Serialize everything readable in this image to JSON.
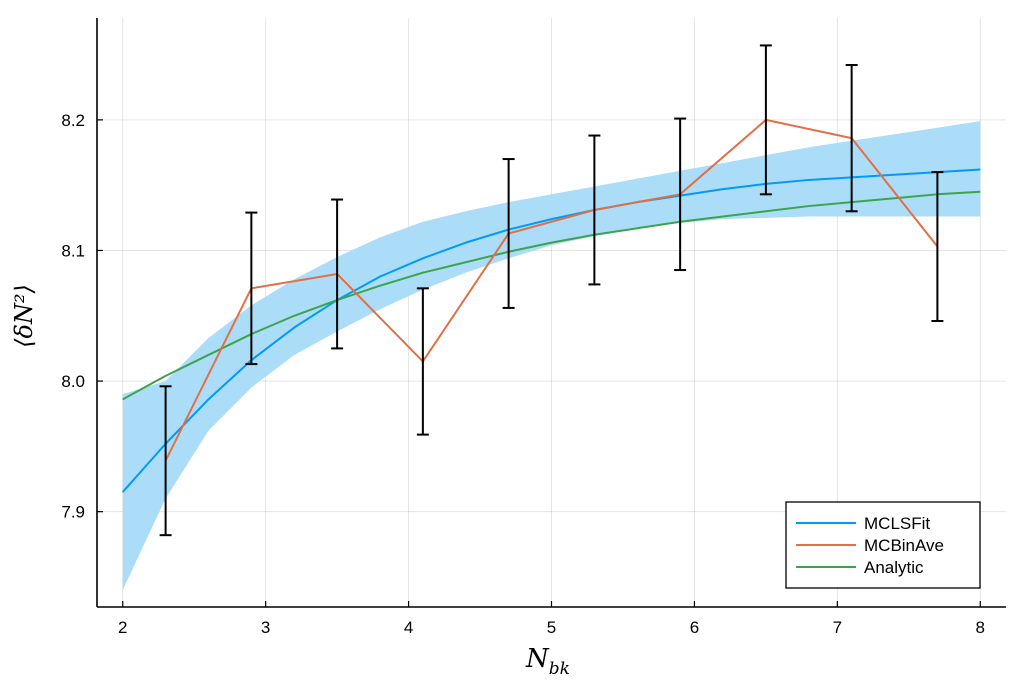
{
  "chart_data": {
    "type": "line",
    "xlabel": "N",
    "xlabel_sub": "bk",
    "ylabel": "⟨δN²⟩",
    "xlim": [
      1.82,
      8.18
    ],
    "ylim": [
      7.827,
      8.278
    ],
    "xticks": [
      2,
      3,
      4,
      5,
      6,
      7,
      8
    ],
    "xtick_labels": [
      "2",
      "3",
      "4",
      "5",
      "6",
      "7",
      "8"
    ],
    "yticks": [
      7.9,
      8.0,
      8.1,
      8.2
    ],
    "ytick_labels": [
      "7.9",
      "8.0",
      "8.1",
      "8.2"
    ],
    "grid": true,
    "legend_position": "bottom-right",
    "band": {
      "color": "#a6dbf8",
      "x": [
        2.0,
        2.3,
        2.6,
        2.9,
        3.2,
        3.5,
        3.8,
        4.1,
        4.4,
        4.7,
        5.0,
        5.3,
        5.6,
        5.9,
        6.2,
        6.5,
        6.8,
        7.1,
        7.4,
        7.7,
        8.0
      ],
      "lower": [
        7.84,
        7.91,
        7.962,
        7.995,
        8.02,
        8.038,
        8.055,
        8.07,
        8.083,
        8.094,
        8.104,
        8.111,
        8.117,
        8.121,
        8.124,
        8.125,
        8.126,
        8.126,
        8.126,
        8.126,
        8.126
      ],
      "upper": [
        7.99,
        8.0,
        8.033,
        8.058,
        8.078,
        8.095,
        8.11,
        8.122,
        8.13,
        8.137,
        8.143,
        8.149,
        8.155,
        8.161,
        8.167,
        8.173,
        8.179,
        8.184,
        8.189,
        8.194,
        8.199
      ]
    },
    "series": [
      {
        "name": "MCLSFit",
        "color": "#009af9",
        "x": [
          2.0,
          2.3,
          2.6,
          2.9,
          3.2,
          3.5,
          3.8,
          4.1,
          4.4,
          4.7,
          5.0,
          5.3,
          5.6,
          5.9,
          6.2,
          6.5,
          6.8,
          7.1,
          7.4,
          7.7,
          8.0
        ],
        "values": [
          7.915,
          7.952,
          7.986,
          8.016,
          8.041,
          8.062,
          8.08,
          8.094,
          8.106,
          8.116,
          8.124,
          8.131,
          8.137,
          8.142,
          8.147,
          8.151,
          8.154,
          8.156,
          8.158,
          8.16,
          8.162
        ]
      },
      {
        "name": "MCBinAve",
        "color": "#e26f46",
        "x": [
          2.3,
          2.9,
          3.5,
          4.1,
          4.7,
          5.3,
          5.9,
          6.5,
          7.1,
          7.7
        ],
        "values": [
          7.939,
          8.071,
          8.082,
          8.015,
          8.113,
          8.131,
          8.143,
          8.2,
          8.186,
          8.103
        ],
        "errors": [
          0.057,
          0.058,
          0.057,
          0.056,
          0.057,
          0.057,
          0.058,
          0.057,
          0.056,
          0.057
        ]
      },
      {
        "name": "Analytic",
        "color": "#3da44d",
        "x": [
          2.0,
          2.3,
          2.6,
          2.9,
          3.2,
          3.5,
          3.8,
          4.1,
          4.4,
          4.7,
          5.0,
          5.3,
          5.6,
          5.9,
          6.2,
          6.5,
          6.8,
          7.1,
          7.4,
          7.7,
          8.0
        ],
        "values": [
          7.986,
          8.004,
          8.02,
          8.036,
          8.05,
          8.062,
          8.073,
          8.083,
          8.091,
          8.099,
          8.106,
          8.112,
          8.117,
          8.122,
          8.126,
          8.13,
          8.134,
          8.137,
          8.14,
          8.143,
          8.145
        ]
      }
    ]
  }
}
